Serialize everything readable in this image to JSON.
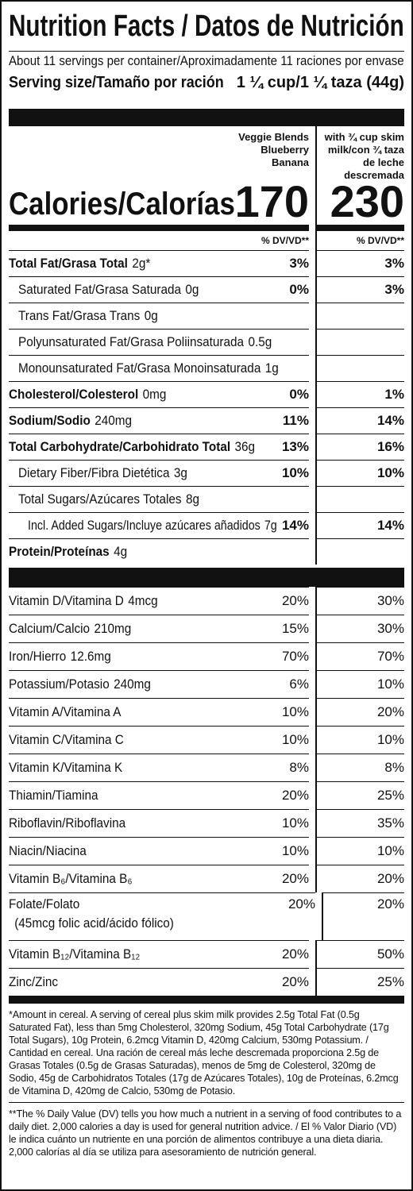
{
  "title": "Nutrition Facts / Datos de Nutrición",
  "servings": "About 11 servings per container/Aproximadamente 11 raciones por envase",
  "serving_size": {
    "label": "Serving size/Tamaño por ración",
    "value": "1 ¼ cup/1 ¼ taza (44g)"
  },
  "columns": [
    "Veggie Blends Blueberry Banana",
    "with ¾ cup skim milk/con ¾ taza de leche descremada"
  ],
  "calories": {
    "label": "Calories/Calorías",
    "values": [
      "170",
      "230"
    ]
  },
  "dv_headers": [
    "% DV/VD**",
    "% DV/VD**"
  ],
  "nutrients": [
    {
      "name": "Total Fat/Grasa Total",
      "amount": "2g*",
      "dv": [
        "3%",
        "3%"
      ],
      "sub": [
        {
          "name": "Saturated Fat/Grasa Saturada",
          "amount": "0g",
          "dv": [
            "0%",
            "3%"
          ]
        },
        {
          "name": "Trans Fat/Grasa Trans",
          "amount": "0g"
        },
        {
          "name": "Polyunsaturated Fat/Grasa Poliinsaturada",
          "amount": "0.5g"
        },
        {
          "name": "Monounsaturated Fat/Grasa Monoinsaturada",
          "amount": "1g"
        }
      ]
    },
    {
      "name": "Cholesterol/Colesterol",
      "amount": "0mg",
      "dv": [
        "0%",
        "1%"
      ]
    },
    {
      "name": "Sodium/Sodio",
      "amount": "240mg",
      "dv": [
        "11%",
        "14%"
      ]
    },
    {
      "name": "Total Carbohydrate/Carbohidrato Total",
      "amount": "36g",
      "dv": [
        "13%",
        "16%"
      ],
      "sub": [
        {
          "name": "Dietary Fiber/Fibra Dietética",
          "amount": "3g",
          "dv": [
            "10%",
            "10%"
          ]
        },
        {
          "name": "Total Sugars/Azúcares Totales",
          "amount": "8g",
          "sub": [
            {
              "name": "Incl. Added Sugars/Incluye azúcares añadidos",
              "amount": "7g",
              "dv": [
                "14%",
                "14%"
              ]
            }
          ]
        }
      ]
    },
    {
      "name": "Protein/Proteínas",
      "amount": "4g"
    }
  ],
  "vitamins": [
    {
      "name": "Vitamin D/Vitamina D",
      "amount": "4mcg",
      "dv": [
        "20%",
        "30%"
      ]
    },
    {
      "name": "Calcium/Calcio",
      "amount": "210mg",
      "dv": [
        "15%",
        "30%"
      ]
    },
    {
      "name": "Iron/Hierro",
      "amount": "12.6mg",
      "dv": [
        "70%",
        "70%"
      ]
    },
    {
      "name": "Potassium/Potasio",
      "amount": "240mg",
      "dv": [
        "6%",
        "10%"
      ]
    },
    {
      "name": "Vitamin A/Vitamina A",
      "dv": [
        "10%",
        "20%"
      ]
    },
    {
      "name": "Vitamin C/Vitamina C",
      "dv": [
        "10%",
        "10%"
      ]
    },
    {
      "name": "Vitamin K/Vitamina K",
      "dv": [
        "8%",
        "8%"
      ]
    },
    {
      "name": "Thiamin/Tiamina",
      "dv": [
        "20%",
        "25%"
      ]
    },
    {
      "name": "Riboflavin/Riboflavina",
      "dv": [
        "10%",
        "35%"
      ]
    },
    {
      "name": "Niacin/Niacina",
      "dv": [
        "10%",
        "10%"
      ]
    },
    {
      "name": "Vitamin B₆/Vitamina B₆",
      "dv": [
        "20%",
        "20%"
      ]
    },
    {
      "name": "Folate/Folato",
      "note": "(45mcg folic acid/ácido fólico)",
      "dv": [
        "20%",
        "20%"
      ]
    },
    {
      "name": "Vitamin B₁₂/Vitamina B₁₂",
      "dv": [
        "20%",
        "50%"
      ]
    },
    {
      "name": "Zinc/Zinc",
      "dv": [
        "20%",
        "25%"
      ]
    }
  ],
  "footnotes": [
    "*Amount in cereal. A serving of cereal plus skim milk provides 2.5g Total Fat (0.5g Saturated Fat), less than 5mg Cholesterol, 320mg Sodium, 45g Total Carbohydrate (17g Total Sugars), 10g Protein, 6.2mcg Vitamin D, 420mg Calcium, 530mg Potassium. / Cantidad en cereal. Una ración de cereal más leche descremada proporciona 2.5g de Grasas Totales (0.5g de Grasas Saturadas), menos de 5mg de Colesterol, 320mg de Sodio, 45g de Carbohidratos Totales (17g de Azúcares Totales), 10g de Proteínas, 6.2mcg de Vitamina D, 420mg de Calcio, 530mg de Potasio.",
    "**The % Daily Value (DV) tells you how much a nutrient in a serving of food contributes to a daily diet. 2,000 calories a day is used for general nutrition advice. / El % Valor Diario (VD) le indica cuánto un nutriente en una porción de alimentos contribuye a una dieta diaria. 2,000 calorías al día se utiliza para asesoramiento de nutrición general."
  ]
}
